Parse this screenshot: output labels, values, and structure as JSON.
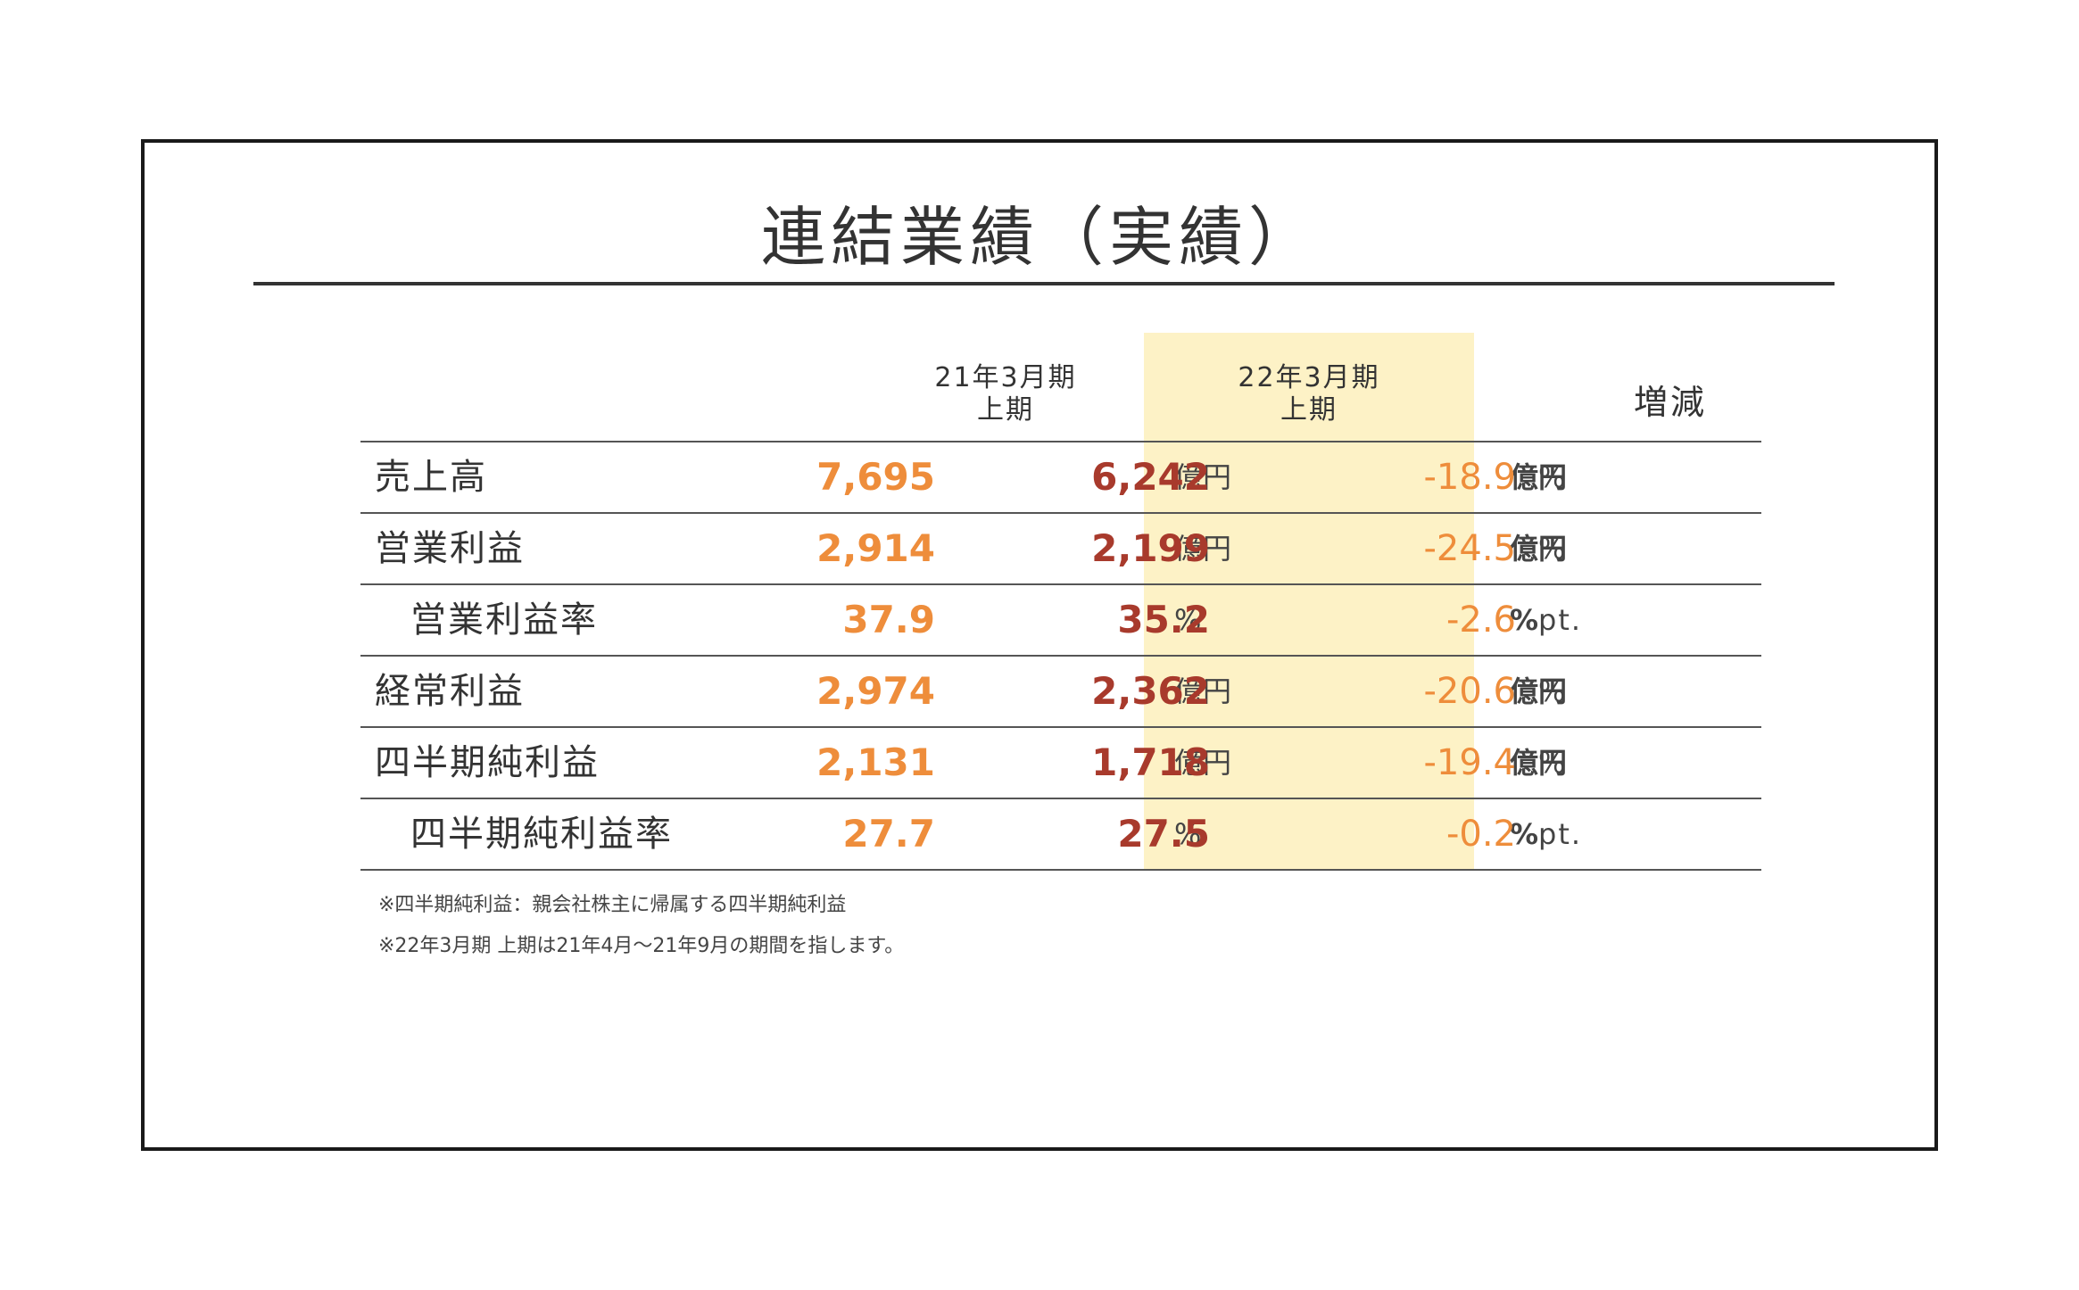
{
  "title": "連結業績（実績）",
  "columns": {
    "prev": {
      "line1": "21年3月期",
      "line2": "上期"
    },
    "curr": {
      "line1": "22年3月期",
      "line2": "上期"
    },
    "diff": "増減"
  },
  "rows": [
    {
      "label": "売上高",
      "prev": "7,695",
      "prev_unit": "億円",
      "curr": "6,242",
      "curr_unit": "億円",
      "diff": "-18.9",
      "diff_unit": "%"
    },
    {
      "label": "営業利益",
      "prev": "2,914",
      "prev_unit": "億円",
      "curr": "2,199",
      "curr_unit": "億円",
      "diff": "-24.5",
      "diff_unit": "%"
    },
    {
      "label": "営業利益率",
      "prev": "37.9",
      "prev_unit": "%",
      "curr": "35.2",
      "curr_unit": "%",
      "diff": "-2.6",
      "diff_unit": "pt."
    },
    {
      "label": "経常利益",
      "prev": "2,974",
      "prev_unit": "億円",
      "curr": "2,362",
      "curr_unit": "億円",
      "diff": "-20.6",
      "diff_unit": "%"
    },
    {
      "label": "四半期純利益",
      "prev": "2,131",
      "prev_unit": "億円",
      "curr": "1,718",
      "curr_unit": "億円",
      "diff": "-19.4",
      "diff_unit": "%"
    },
    {
      "label": "四半期純利益率",
      "prev": "27.7",
      "prev_unit": "%",
      "curr": "27.5",
      "curr_unit": "%",
      "diff": "-0.2",
      "diff_unit": "pt."
    }
  ],
  "notes": [
    "※四半期純利益：親会社株主に帰属する四半期純利益",
    "※22年3月期 上期は21年4月～21年9月の期間を指します。"
  ],
  "colors": {
    "prev_value": "#ee8d3b",
    "curr_value": "#a83a2c",
    "diff_value": "#ee8d3b",
    "highlight": "#fdf2c6"
  }
}
